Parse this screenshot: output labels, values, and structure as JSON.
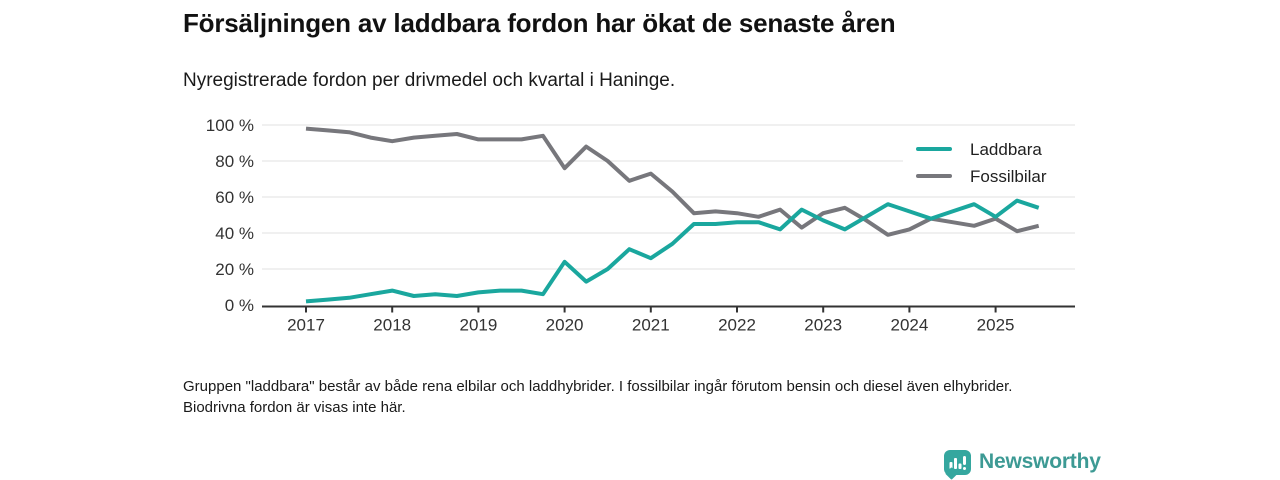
{
  "header": {
    "title": "Försäljningen av laddbara fordon har ökat de senaste åren",
    "subtitle": "Nyregistrerade fordon per drivmedel och kvartal i Haninge."
  },
  "footer": {
    "note": "Gruppen \"laddbara\" består av både rena elbilar och laddhybrider. I fossilbilar ingår förutom bensin och diesel även elhybrider. Biodrivna fordon är visas inte här."
  },
  "branding": {
    "logo_text": "Newsworthy",
    "logo_icon": "bar-chart-speech-bubble-icon",
    "logo_color": "#3d9a94"
  },
  "chart_data": {
    "type": "line",
    "title": "Försäljningen av laddbara fordon har ökat de senaste åren",
    "subtitle": "Nyregistrerade fordon per drivmedel och kvartal i Haninge.",
    "x_unit": "quarter",
    "first_point": "2017 Q1",
    "last_point": "2025 Q3",
    "x_tick_every": 4,
    "x_ticks": [
      "2017",
      "2018",
      "2019",
      "2020",
      "2021",
      "2022",
      "2023",
      "2024",
      "2025"
    ],
    "y_ticks": [
      {
        "value": 0,
        "label": "0 %"
      },
      {
        "value": 20,
        "label": "20 %"
      },
      {
        "value": 40,
        "label": "40 %"
      },
      {
        "value": 60,
        "label": "60 %"
      },
      {
        "value": 80,
        "label": "80 %"
      },
      {
        "value": 100,
        "label": "100 %"
      }
    ],
    "ylim": [
      0,
      100
    ],
    "grid": true,
    "legend_position": "top-right",
    "series": [
      {
        "name": "Laddbara",
        "color": "#1aa79e",
        "values": [
          2,
          3,
          4,
          6,
          8,
          5,
          6,
          5,
          7,
          8,
          8,
          6,
          24,
          13,
          20,
          31,
          26,
          34,
          45,
          45,
          46,
          46,
          42,
          53,
          47,
          42,
          49,
          56,
          52,
          48,
          52,
          56,
          49,
          58,
          54
        ]
      },
      {
        "name": "Fossilbilar",
        "color": "#77777c",
        "values": [
          98,
          97,
          96,
          93,
          91,
          93,
          94,
          95,
          92,
          92,
          92,
          94,
          76,
          88,
          80,
          69,
          73,
          63,
          51,
          52,
          51,
          49,
          53,
          43,
          51,
          54,
          47,
          39,
          42,
          48,
          46,
          44,
          48,
          41,
          44
        ]
      }
    ],
    "axis_color": "#333333",
    "gridline_color": "#e2e2e2"
  }
}
